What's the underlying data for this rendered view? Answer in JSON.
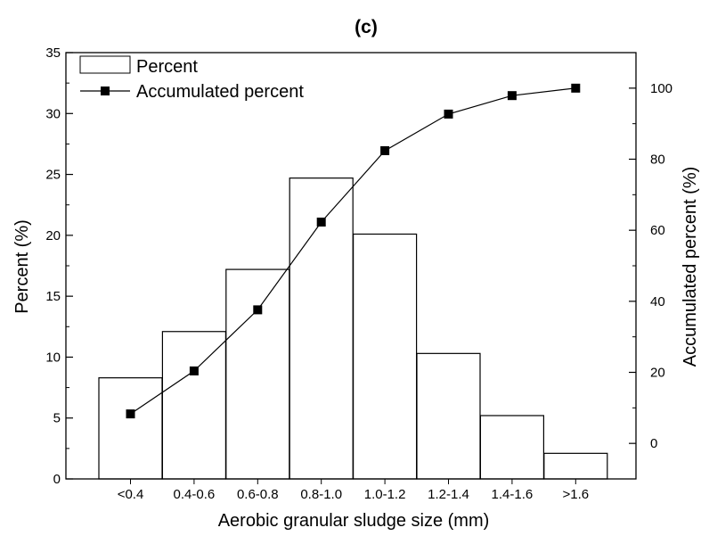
{
  "chart_data": {
    "type": "bar",
    "title": "(c)",
    "xlabel": "Aerobic granular sludge size (mm)",
    "ylabel": "Percent (%)",
    "y2label": "Accumulated percent (%)",
    "categories": [
      "<0.4",
      "0.4-0.6",
      "0.6-0.8",
      "0.8-1.0",
      "1.0-1.2",
      "1.2-1.4",
      "1.4-1.6",
      ">1.6"
    ],
    "ylim": [
      0,
      35
    ],
    "yticks": [
      0,
      5,
      10,
      15,
      20,
      25,
      30,
      35
    ],
    "y2lim": [
      -10,
      110
    ],
    "y2ticks": [
      0,
      20,
      40,
      60,
      80,
      100
    ],
    "grid": false,
    "legend_position": "top-left",
    "series": [
      {
        "name": "Percent",
        "type": "bar",
        "axis": "left",
        "values": [
          8.3,
          12.1,
          17.2,
          24.7,
          20.1,
          10.3,
          5.2,
          2.1
        ],
        "fill": "#ffffff",
        "stroke": "#000000"
      },
      {
        "name": "Accumulated percent",
        "type": "line",
        "axis": "right",
        "marker": "square",
        "values": [
          8.3,
          20.4,
          37.6,
          62.3,
          82.4,
          92.7,
          97.9,
          100
        ],
        "color": "#000000"
      }
    ]
  }
}
